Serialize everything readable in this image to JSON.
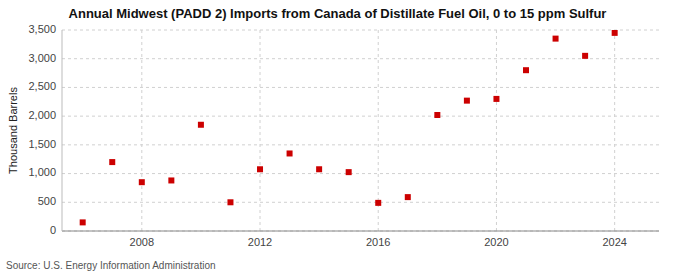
{
  "chart_data": {
    "type": "scatter",
    "title": "Annual Midwest (PADD 2) Imports from Canada of Distillate Fuel Oil, 0 to 15 ppm Sulfur",
    "ylabel": "Thousand Barrels",
    "source": "Source: U.S. Energy Information Administration",
    "x": [
      2006,
      2007,
      2008,
      2009,
      2010,
      2011,
      2012,
      2013,
      2014,
      2015,
      2016,
      2017,
      2018,
      2019,
      2020,
      2021,
      2022,
      2023,
      2024
    ],
    "values": [
      150,
      1200,
      850,
      880,
      1850,
      500,
      1075,
      1350,
      1075,
      1025,
      490,
      590,
      2020,
      2270,
      2300,
      2800,
      3350,
      3050,
      3450
    ],
    "color": "#cc0000",
    "marker": "square",
    "xlim": [
      2005.3,
      2025.5
    ],
    "ylim": [
      0,
      3500
    ],
    "xticks": [
      2008,
      2012,
      2016,
      2020,
      2024
    ],
    "yticks": [
      0,
      500,
      {
        "value": 1000,
        "label": "1,000"
      },
      {
        "value": 1500,
        "label": "1,500"
      },
      {
        "value": 2000,
        "label": "2,000"
      },
      {
        "value": 2500,
        "label": "2,500"
      },
      {
        "value": 3000,
        "label": "3,000"
      },
      {
        "value": 3500,
        "label": "3,500"
      }
    ],
    "grid": true
  }
}
